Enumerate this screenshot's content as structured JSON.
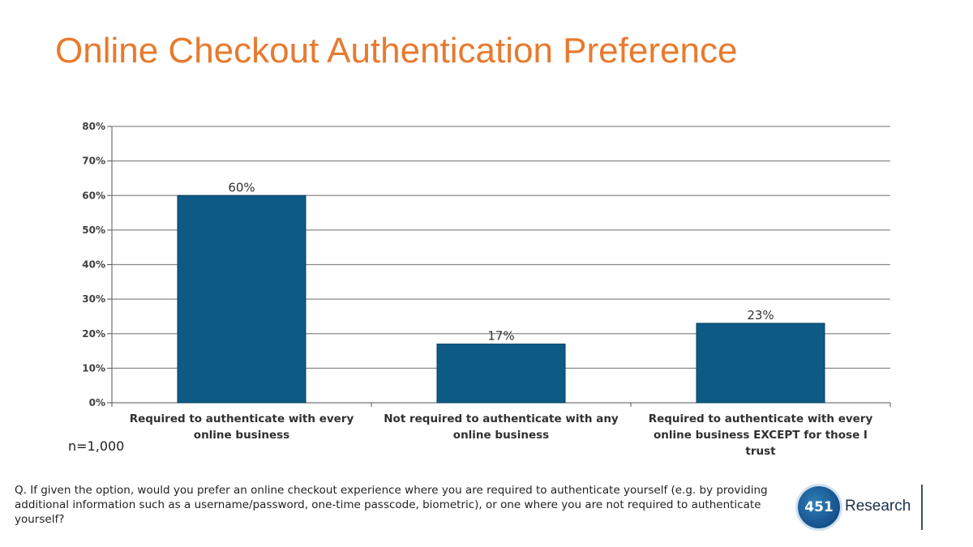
{
  "header": {
    "title": "Online Checkout Authentication Preference"
  },
  "chart_data": {
    "type": "bar",
    "categories": [
      [
        "Required to authenticate with every",
        "online business"
      ],
      [
        "Not required to authenticate with any",
        "online business"
      ],
      [
        "Required to authenticate with every",
        "online business EXCEPT for those I",
        "trust"
      ]
    ],
    "values": [
      60,
      17,
      23
    ],
    "data_labels": [
      "60%",
      "17%",
      "23%"
    ],
    "ylim": [
      0,
      80
    ],
    "yticks": [
      "0%",
      "10%",
      "20%",
      "30%",
      "40%",
      "50%",
      "60%",
      "70%",
      "80%"
    ],
    "grid": true,
    "bar_color": "#0d5a85",
    "legend": "none"
  },
  "footer": {
    "sample_note": "n=1,000",
    "question": "Q. If given the option, would you prefer an online checkout experience where you are required to authenticate yourself (e.g. by providing additional information such as a username/password, one-time passcode, biometric), or one where you are not required to authenticate yourself?",
    "logo_number": "451",
    "logo_word": "Research"
  },
  "colors": {
    "title": "#e87a2e",
    "bars": "#0d5a85"
  }
}
